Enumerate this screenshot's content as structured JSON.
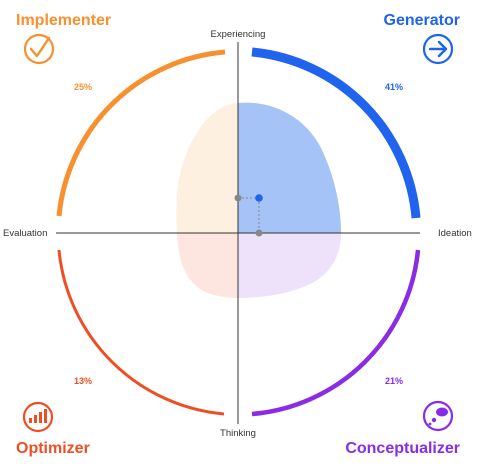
{
  "quadrants": {
    "implementer": {
      "title": "Implementer",
      "percent": "25%",
      "color": "#F7902F",
      "icon": "checkmark-circle-icon"
    },
    "generator": {
      "title": "Generator",
      "percent": "41%",
      "color": "#1F63EE",
      "icon": "arrow-right-circle-icon"
    },
    "optimizer": {
      "title": "Optimizer",
      "percent": "13%",
      "color": "#EF4E25",
      "icon": "signal-bars-circle-icon"
    },
    "conceptualizer": {
      "title": "Conceptualizer",
      "percent": "21%",
      "color": "#8A2BE6",
      "icon": "thought-bubble-circle-icon"
    }
  },
  "axes": {
    "top": "Experiencing",
    "bottom": "Thinking",
    "left": "Evaluation",
    "right": "Ideation"
  }
}
